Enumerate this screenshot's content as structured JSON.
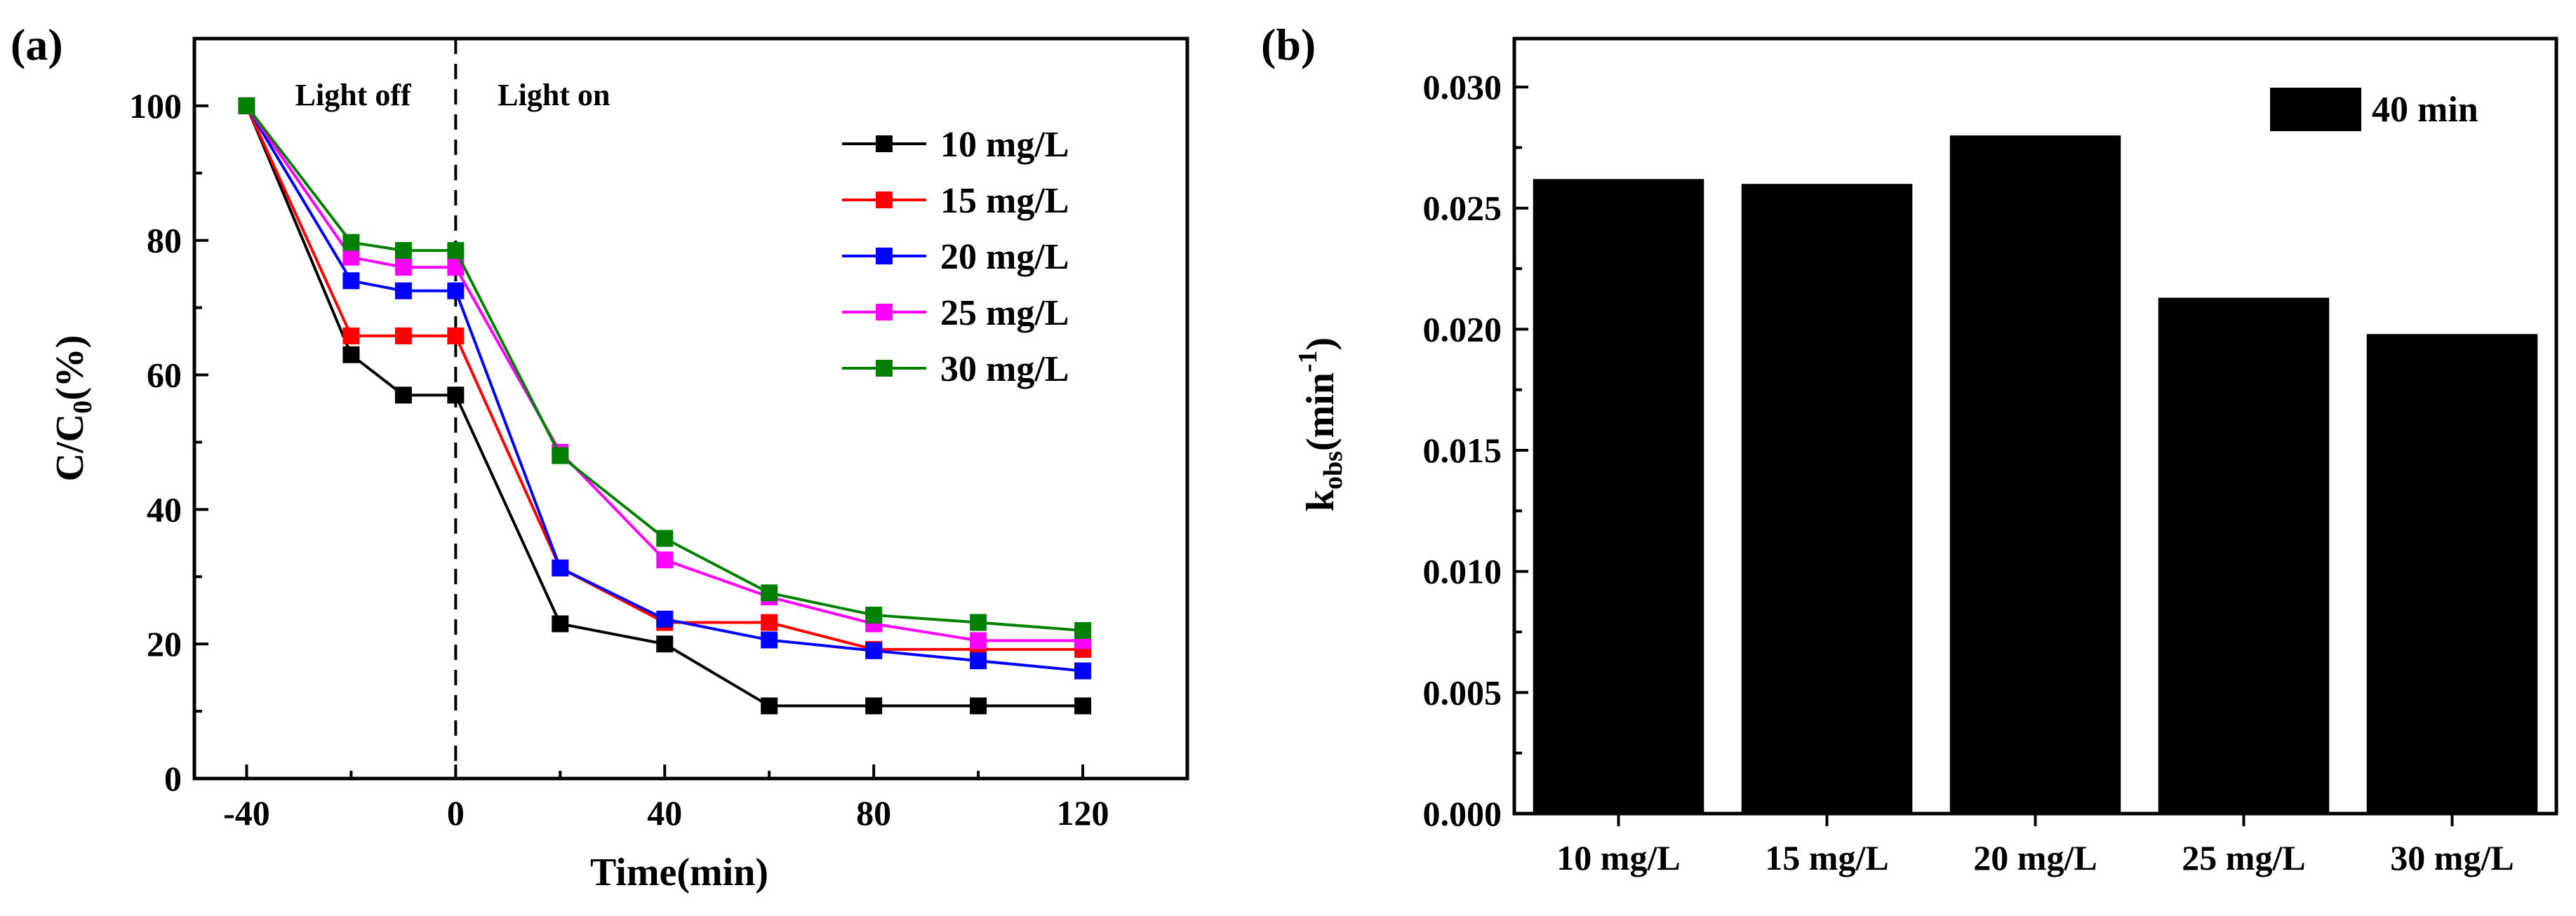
{
  "chart_data": [
    {
      "type": "line",
      "panel_label": "(a)",
      "title": "",
      "xlabel": "Time(min)",
      "ylabel": {
        "main": "C/C",
        "sub": "0",
        "tail": "(%)"
      },
      "xlim": [
        -50,
        140
      ],
      "ylim": [
        0,
        110
      ],
      "xticks": [
        -40,
        0,
        40,
        80,
        120
      ],
      "yticks": [
        0,
        20,
        40,
        60,
        80,
        100
      ],
      "grid": false,
      "legend_position": "top-right",
      "annotations": {
        "light_off": "Light off",
        "light_on": "Light on",
        "divider_x": 0
      },
      "x": [
        -40,
        -20,
        -10,
        0,
        20,
        40,
        60,
        80,
        100,
        120
      ],
      "series": [
        {
          "name": "10 mg/L",
          "color": "#000000",
          "values": [
            100,
            63,
            57,
            57,
            23,
            20,
            10.8,
            10.8,
            10.8,
            10.8
          ]
        },
        {
          "name": "15 mg/L",
          "color": "#ff0000",
          "values": [
            100,
            65.8,
            65.8,
            65.8,
            31.3,
            23.2,
            23.2,
            19.2,
            19.2,
            19.2
          ]
        },
        {
          "name": "20 mg/L",
          "color": "#0000ff",
          "values": [
            100,
            74,
            72.5,
            72.5,
            31.3,
            23.7,
            20.6,
            19,
            17.5,
            16
          ]
        },
        {
          "name": "25 mg/L",
          "color": "#ff00ff",
          "values": [
            100,
            77.5,
            76,
            76,
            48.5,
            32.5,
            27,
            23,
            20.5,
            20.5
          ]
        },
        {
          "name": "30 mg/L",
          "color": "#008000",
          "values": [
            100,
            79.7,
            78.5,
            78.5,
            48,
            35.7,
            27.6,
            24.3,
            23.2,
            22
          ]
        }
      ]
    },
    {
      "type": "bar",
      "panel_label": "(b)",
      "title": "",
      "xlabel": "",
      "ylabel": {
        "main": "k",
        "sub": "obs",
        "tail": "(min",
        "sup": "-1",
        "close": ")"
      },
      "categories": [
        "10 mg/L",
        "15 mg/L",
        "20 mg/L",
        "25 mg/L",
        "30 mg/L"
      ],
      "values": [
        0.0262,
        0.026,
        0.028,
        0.0213,
        0.0198
      ],
      "ylim": [
        0,
        0.032
      ],
      "yticks": [
        "0.000",
        "0.005",
        "0.010",
        "0.015",
        "0.020",
        "0.025",
        "0.030"
      ],
      "grid": false,
      "bar_color": "#000000",
      "legend_position": "top-right",
      "legend": [
        "40 min"
      ]
    }
  ]
}
